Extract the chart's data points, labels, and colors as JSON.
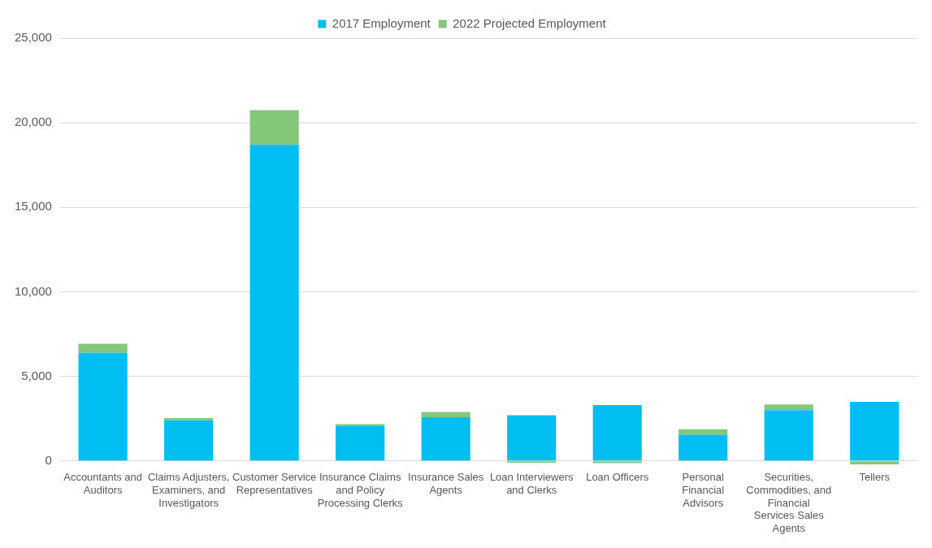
{
  "chart_data": {
    "type": "bar",
    "stacked": true,
    "categories": [
      "Accountants and Auditors",
      "Claims Adjusters, Examiners, and Investigators",
      "Customer Service Representatives",
      "Insurance Claims and Policy Processing Clerks",
      "Insurance Sales Agents",
      "Loan Interviewers and Clerks",
      "Loan Officers",
      "Personal Financial Advisors",
      "Securities, Commodities, and Financial Services Sales Agents",
      "Tellers"
    ],
    "series": [
      {
        "name": "2017 Employment",
        "color": "#00bdf2",
        "values": [
          6400,
          2400,
          18700,
          2050,
          2580,
          2700,
          3300,
          1550,
          3000,
          3500
        ]
      },
      {
        "name": "2022 Projected Employment",
        "color": "#84c77a",
        "values": [
          530,
          130,
          2040,
          130,
          320,
          -110,
          -130,
          320,
          340,
          -200
        ]
      }
    ],
    "ylim": [
      -250,
      25000
    ],
    "yticks": [
      0,
      {
        "value": 5000,
        "label": "5,000"
      },
      {
        "value": 10000,
        "label": "10,000"
      },
      {
        "value": 15000,
        "label": "15,000"
      },
      {
        "value": 20000,
        "label": "20,000"
      },
      {
        "value": 25000,
        "label": "25,000"
      }
    ],
    "grid": "y",
    "legend": "top"
  }
}
